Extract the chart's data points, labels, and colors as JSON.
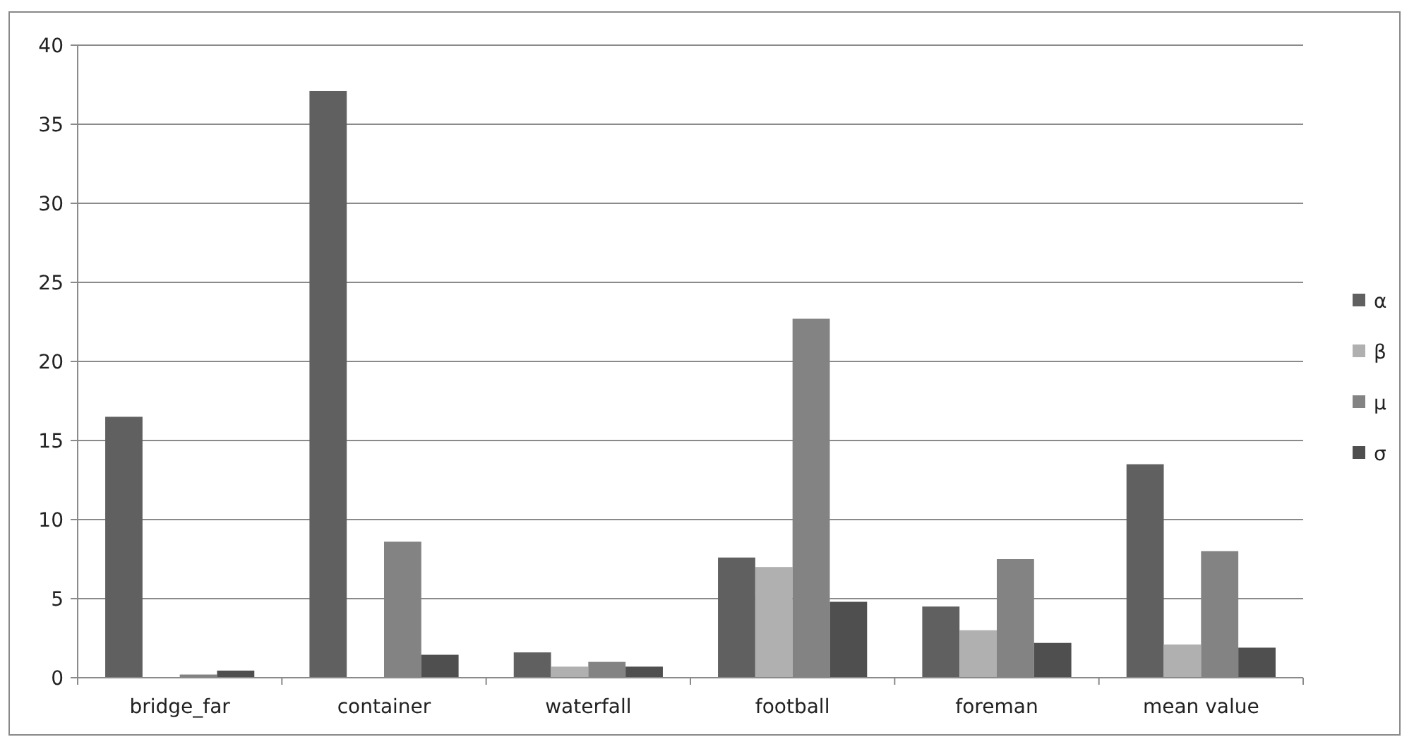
{
  "chart_data": {
    "type": "bar",
    "categories": [
      "bridge_far",
      "container",
      "waterfall",
      "football",
      "foreman",
      "mean value"
    ],
    "series": [
      {
        "name": "α",
        "color": "#606060",
        "values": [
          16.5,
          37.1,
          1.6,
          7.6,
          4.5,
          13.5
        ]
      },
      {
        "name": "β",
        "color": "#b0b0b0",
        "values": [
          0,
          0,
          0.7,
          7.0,
          3.0,
          2.1
        ]
      },
      {
        "name": "μ",
        "color": "#838383",
        "values": [
          0.2,
          8.6,
          1.0,
          22.7,
          7.5,
          8.0
        ]
      },
      {
        "name": "σ",
        "color": "#4f4f4f",
        "values": [
          0.45,
          1.45,
          0.7,
          4.8,
          2.2,
          1.9
        ]
      }
    ],
    "ylim": [
      0,
      40
    ],
    "yticks": [
      0,
      5,
      10,
      15,
      20,
      25,
      30,
      35,
      40
    ],
    "grid": "y",
    "legend": "right"
  }
}
